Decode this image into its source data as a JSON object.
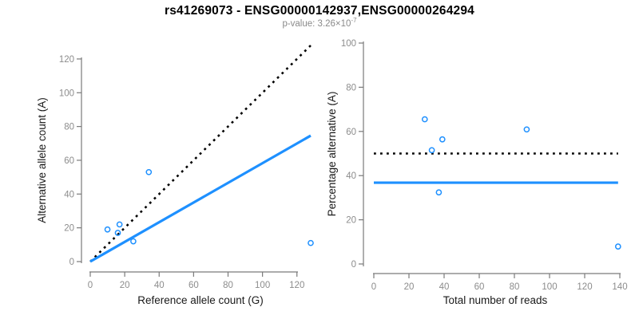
{
  "title": "rs41269073 - ENSG00000142937,ENSG00000264294",
  "subtitle": {
    "text": "p-value: 3.26×10",
    "exponent": "-7"
  },
  "colors": {
    "accent_blue": "#1E90FF",
    "dotted_black": "#000000",
    "axis_gray": "#7a7a7a",
    "tick_label_gray": "#8c8c8c",
    "label_black": "#1a1a1a",
    "background": "#ffffff"
  },
  "chart_data": [
    {
      "name": "allele-count-plot",
      "type": "scatter",
      "xlabel": "Reference allele count (G)",
      "ylabel": "Alternative allele count (A)",
      "xlim": [
        0,
        128
      ],
      "ylim": [
        0,
        128
      ],
      "xticks": [
        0,
        20,
        40,
        60,
        80,
        100,
        120
      ],
      "yticks": [
        0,
        20,
        40,
        60,
        80,
        100,
        120
      ],
      "grid": false,
      "marker": "open-circle",
      "point_color": "#1E90FF",
      "points": [
        [
          10,
          19
        ],
        [
          16,
          17
        ],
        [
          17,
          22
        ],
        [
          25,
          12
        ],
        [
          34,
          53
        ],
        [
          128,
          11
        ]
      ],
      "lines": [
        {
          "name": "identity-line",
          "style": "dotted",
          "color": "#000000",
          "width": 2.6,
          "x1": 0,
          "y1": 0,
          "x2": 128,
          "y2": 128
        },
        {
          "name": "regression-line",
          "style": "solid",
          "color": "#1E90FF",
          "width": 3.2,
          "x1": 0,
          "y1": 0,
          "x2": 128,
          "y2": 74.6
        }
      ]
    },
    {
      "name": "percentage-alternative-plot",
      "type": "scatter",
      "xlabel": "Total number of reads",
      "ylabel": "Percentage alternative (A)",
      "xlim": [
        0,
        140
      ],
      "ylim": [
        0,
        100
      ],
      "xticks": [
        0,
        20,
        40,
        60,
        80,
        100,
        120,
        140
      ],
      "yticks": [
        0,
        20,
        40,
        60,
        80,
        100
      ],
      "grid": false,
      "marker": "open-circle",
      "point_color": "#1E90FF",
      "points": [
        [
          29,
          65.5
        ],
        [
          33,
          51.5
        ],
        [
          39,
          56.4
        ],
        [
          37,
          32.4
        ],
        [
          87,
          60.9
        ],
        [
          139,
          7.9
        ]
      ],
      "lines": [
        {
          "name": "expected-50-percent-line",
          "style": "dotted",
          "color": "#000000",
          "width": 2.6,
          "x1": 0,
          "y1": 50,
          "x2": 139,
          "y2": 50
        },
        {
          "name": "mean-percentage-line",
          "style": "solid",
          "color": "#1E90FF",
          "width": 3.2,
          "x1": 0,
          "y1": 36.8,
          "x2": 139,
          "y2": 36.8
        }
      ]
    }
  ]
}
